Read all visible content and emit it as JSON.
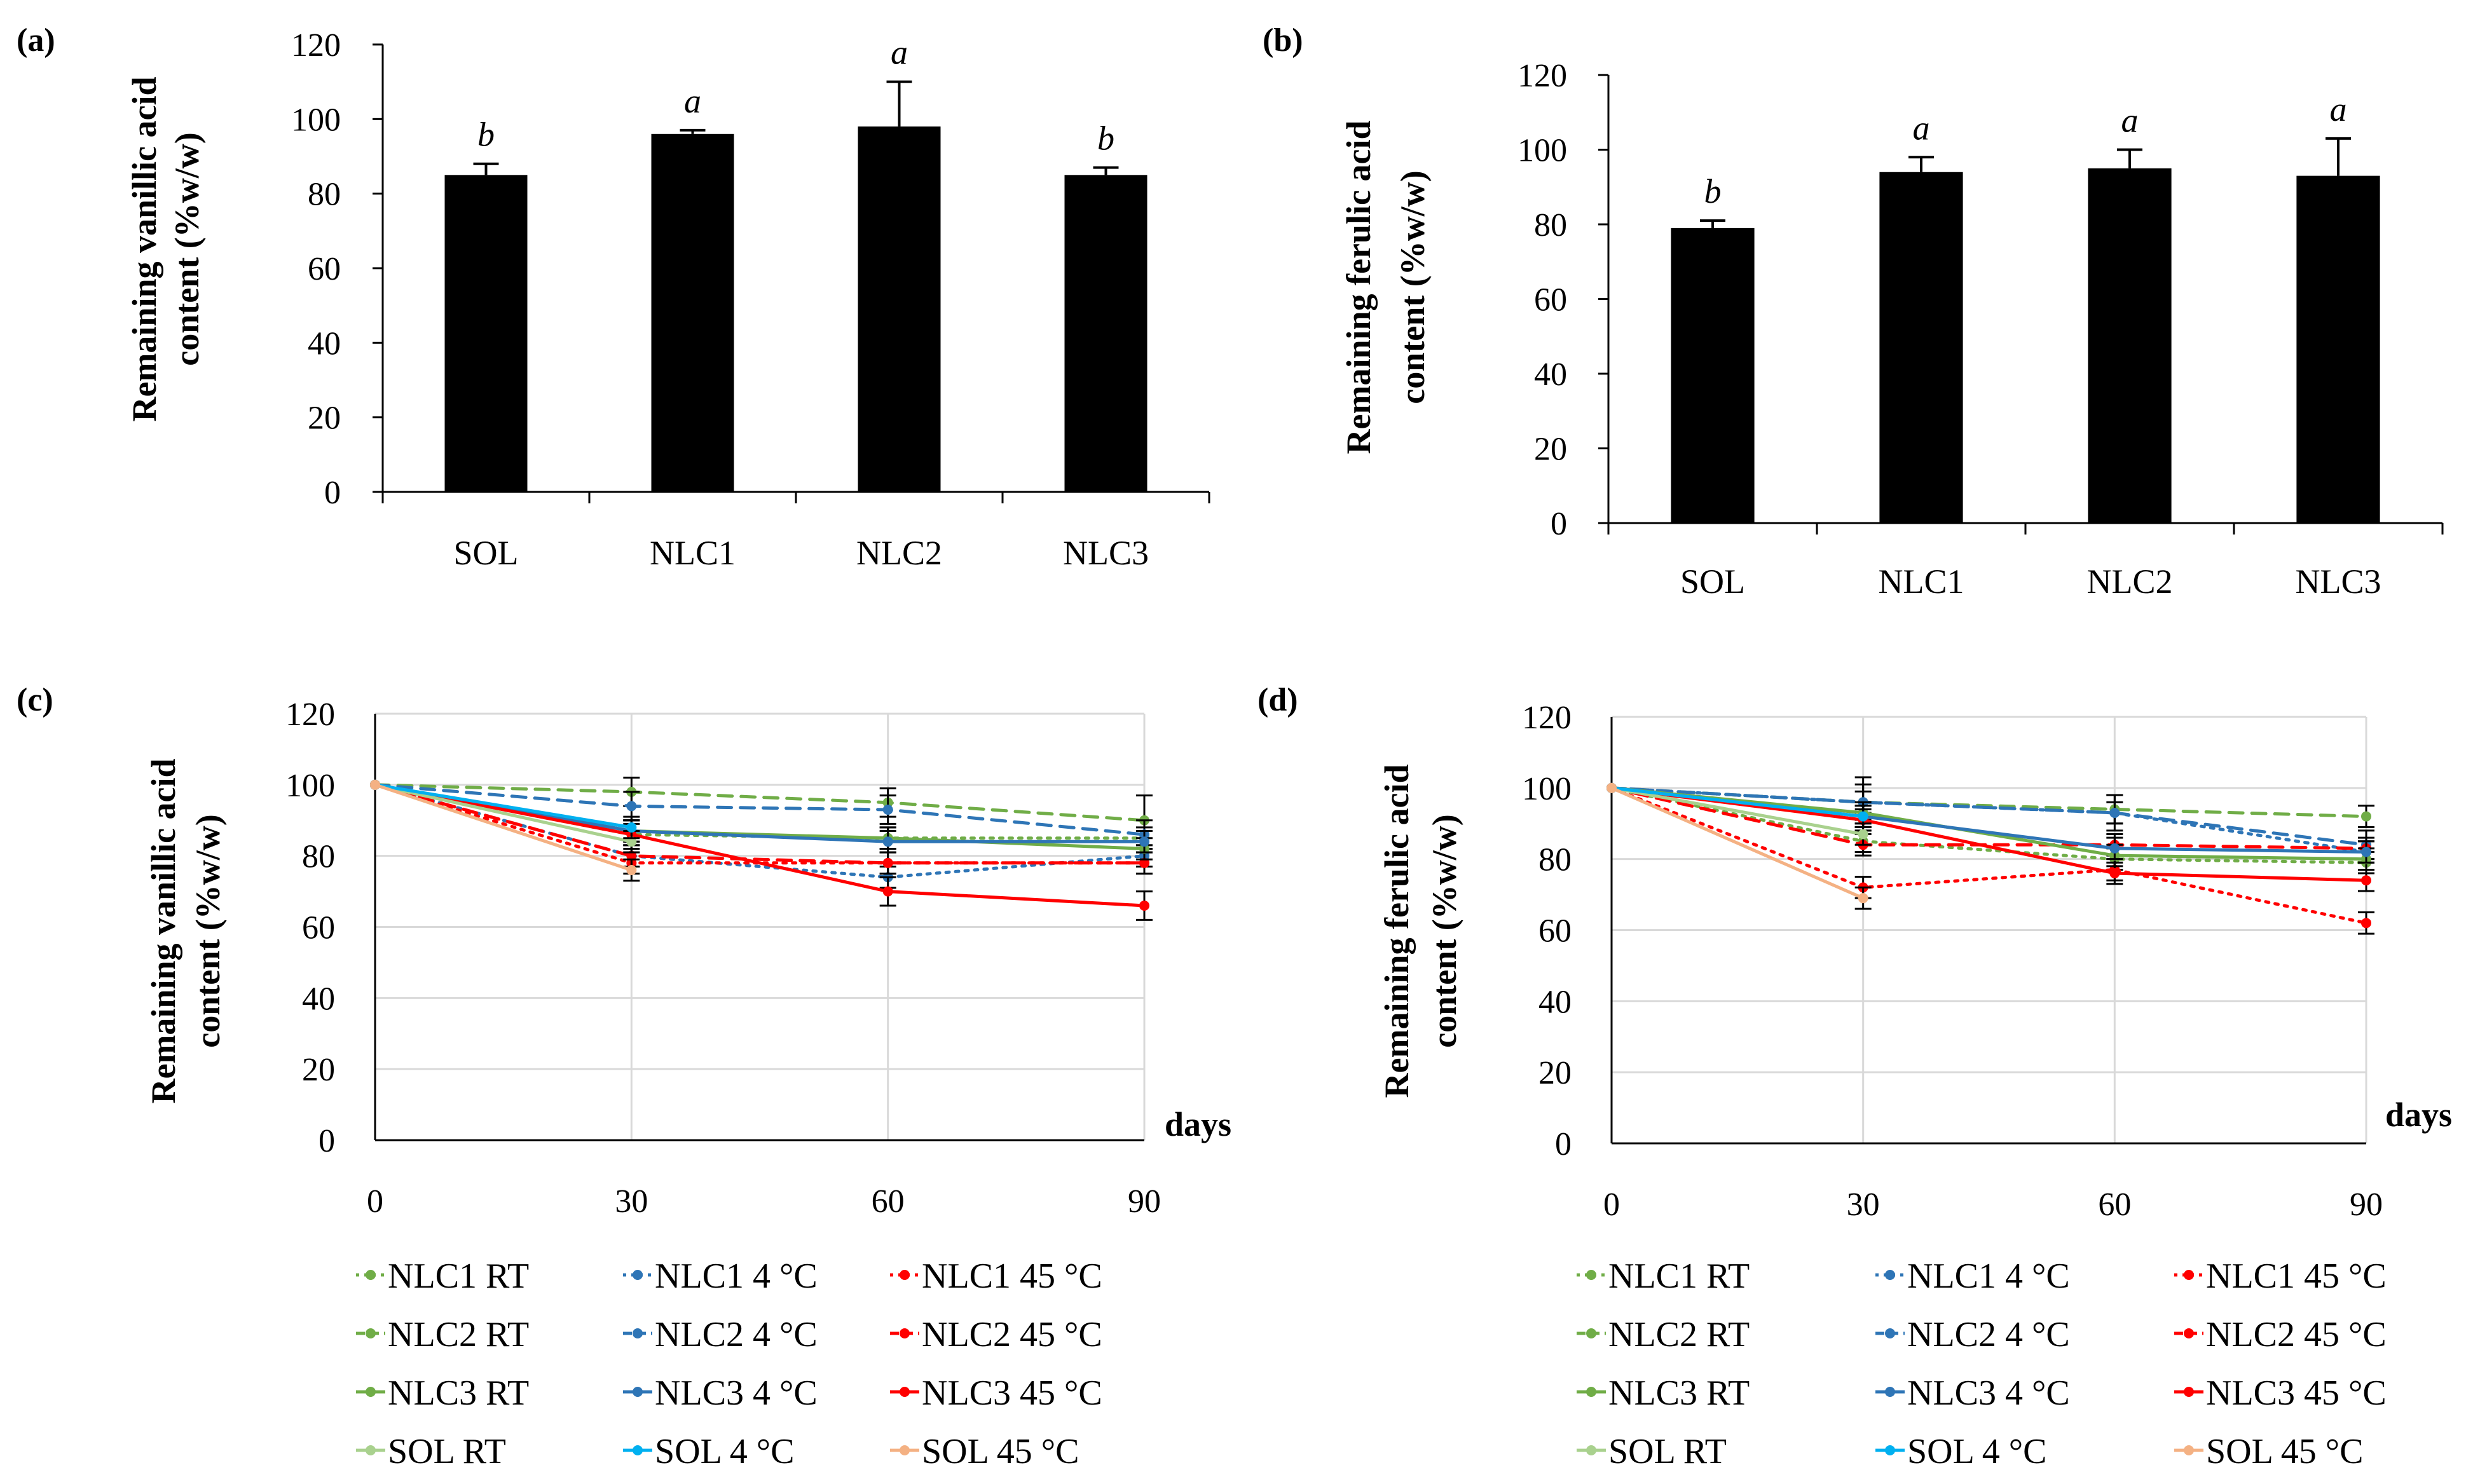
{
  "figure": {
    "xlabel_days": "days"
  },
  "colors": {
    "bar": "#000000",
    "grid": "#d9d9d9",
    "rt": "#70ad47",
    "sol_rt": "#a9d18e",
    "cold": "#2e75b6",
    "sol_cold": "#00b0f0",
    "hot": "#ff0000",
    "sol_hot": "#f4b183"
  },
  "chart_data": [
    {
      "id": "a",
      "panel_label": "(a)",
      "type": "bar",
      "ylabel": [
        "Remaining vanillic acid",
        "content (%w/w)"
      ],
      "categories": [
        "SOL",
        "NLC1",
        "NLC2",
        "NLC3"
      ],
      "values": [
        85,
        96,
        98,
        85
      ],
      "errors": [
        3,
        1,
        12,
        2
      ],
      "significance": [
        "b",
        "a",
        "a",
        "b"
      ],
      "ylim": [
        0,
        120
      ],
      "yticks": [
        0,
        20,
        40,
        60,
        80,
        100,
        120
      ]
    },
    {
      "id": "b",
      "panel_label": "(b)",
      "type": "bar",
      "ylabel": [
        "Remaining ferulic acid",
        "content (%w/w)"
      ],
      "categories": [
        "SOL",
        "NLC1",
        "NLC2",
        "NLC3"
      ],
      "values": [
        79,
        94,
        95,
        93
      ],
      "errors": [
        2,
        4,
        5,
        10
      ],
      "significance": [
        "b",
        "a",
        "a",
        "a"
      ],
      "ylim": [
        0,
        120
      ],
      "yticks": [
        0,
        20,
        40,
        60,
        80,
        100,
        120
      ]
    },
    {
      "id": "c",
      "panel_label": "(c)",
      "type": "line",
      "ylabel": [
        "Remaining vanillic acid",
        "content (%w/w)"
      ],
      "xlabel": "days",
      "x": [
        0,
        30,
        60,
        90
      ],
      "ylim": [
        0,
        120
      ],
      "yticks": [
        0,
        20,
        40,
        60,
        80,
        100,
        120
      ],
      "xticks": [
        0,
        30,
        60,
        90
      ],
      "series": [
        {
          "name": "NLC1 RT",
          "x": [
            0,
            30,
            60,
            90
          ],
          "values": [
            100,
            86,
            85,
            85
          ],
          "color": "#70ad47",
          "dash": "dot",
          "errors": [
            0,
            3,
            3,
            3
          ]
        },
        {
          "name": "NLC1 4 °C",
          "x": [
            0,
            30,
            60,
            90
          ],
          "values": [
            100,
            80,
            74,
            80
          ],
          "color": "#2e75b6",
          "dash": "dot",
          "errors": [
            0,
            3,
            3,
            3
          ]
        },
        {
          "name": "NLC1 45 °C",
          "x": [
            0,
            30,
            60,
            90
          ],
          "values": [
            100,
            78,
            78,
            78
          ],
          "color": "#ff0000",
          "dash": "dot",
          "errors": [
            0,
            3,
            3,
            3
          ]
        },
        {
          "name": "NLC2 RT",
          "x": [
            0,
            30,
            60,
            90
          ],
          "values": [
            100,
            98,
            95,
            90
          ],
          "color": "#70ad47",
          "dash": "dash",
          "errors": [
            0,
            4,
            4,
            7
          ]
        },
        {
          "name": "NLC2 4 °C",
          "x": [
            0,
            30,
            60,
            90
          ],
          "values": [
            100,
            94,
            93,
            86
          ],
          "color": "#2e75b6",
          "dash": "dash",
          "errors": [
            0,
            4,
            4,
            4
          ]
        },
        {
          "name": "NLC2 45 °C",
          "x": [
            0,
            30,
            60,
            90
          ],
          "values": [
            100,
            80,
            78,
            78
          ],
          "color": "#ff0000",
          "dash": "dash",
          "errors": [
            0,
            3,
            3,
            3
          ]
        },
        {
          "name": "NLC3 RT",
          "x": [
            0,
            30,
            60,
            90
          ],
          "values": [
            100,
            87,
            85,
            82
          ],
          "color": "#70ad47",
          "dash": "solid",
          "errors": [
            0,
            3,
            3,
            3
          ]
        },
        {
          "name": "NLC3 4 °C",
          "x": [
            0,
            30,
            60,
            90
          ],
          "values": [
            100,
            87,
            84,
            84
          ],
          "color": "#2e75b6",
          "dash": "solid",
          "errors": [
            0,
            3,
            3,
            3
          ]
        },
        {
          "name": "NLC3 45 °C",
          "x": [
            0,
            30,
            60,
            90
          ],
          "values": [
            100,
            86,
            70,
            66
          ],
          "color": "#ff0000",
          "dash": "solid",
          "errors": [
            0,
            4,
            4,
            4
          ]
        },
        {
          "name": "SOL RT",
          "x": [
            0,
            30
          ],
          "values": [
            100,
            84
          ],
          "color": "#a9d18e",
          "dash": "solid",
          "errors": [
            0,
            3
          ]
        },
        {
          "name": "SOL 4 °C",
          "x": [
            0,
            30
          ],
          "values": [
            100,
            88
          ],
          "color": "#00b0f0",
          "dash": "solid",
          "errors": [
            0,
            3
          ]
        },
        {
          "name": "SOL 45 °C",
          "x": [
            0,
            30
          ],
          "values": [
            100,
            76
          ],
          "color": "#f4b183",
          "dash": "solid",
          "errors": [
            0,
            3
          ]
        }
      ]
    },
    {
      "id": "d",
      "panel_label": "(d)",
      "type": "line",
      "ylabel": [
        "Remaining ferulic acid",
        "content (%w/w)"
      ],
      "xlabel": "days",
      "x": [
        0,
        30,
        60,
        90
      ],
      "ylim": [
        0,
        120
      ],
      "yticks": [
        0,
        20,
        40,
        60,
        80,
        100,
        120
      ],
      "xticks": [
        0,
        30,
        60,
        90
      ],
      "series": [
        {
          "name": "NLC1 RT",
          "x": [
            0,
            30,
            60,
            90
          ],
          "values": [
            100,
            85,
            80,
            79
          ],
          "color": "#70ad47",
          "dash": "dot",
          "errors": [
            0,
            3,
            3,
            3
          ]
        },
        {
          "name": "NLC1 4 °C",
          "x": [
            0,
            30,
            60,
            90
          ],
          "values": [
            100,
            96,
            93,
            82
          ],
          "color": "#2e75b6",
          "dash": "dot",
          "errors": [
            0,
            3,
            3,
            3
          ]
        },
        {
          "name": "NLC1 45 °C",
          "x": [
            0,
            30,
            60,
            90
          ],
          "values": [
            100,
            72,
            77,
            62
          ],
          "color": "#ff0000",
          "dash": "dot",
          "errors": [
            0,
            3,
            3,
            3
          ]
        },
        {
          "name": "NLC2 RT",
          "x": [
            0,
            30,
            60,
            90
          ],
          "values": [
            100,
            96,
            94,
            92
          ],
          "color": "#70ad47",
          "dash": "dash",
          "errors": [
            0,
            5,
            4,
            3
          ]
        },
        {
          "name": "NLC2 4 °C",
          "x": [
            0,
            30,
            60,
            90
          ],
          "values": [
            100,
            96,
            93,
            84
          ],
          "color": "#2e75b6",
          "dash": "dash",
          "errors": [
            0,
            7,
            5,
            4
          ]
        },
        {
          "name": "NLC2 45 °C",
          "x": [
            0,
            30,
            60,
            90
          ],
          "values": [
            100,
            84,
            84,
            83
          ],
          "color": "#ff0000",
          "dash": "dash",
          "errors": [
            0,
            3,
            3,
            3
          ]
        },
        {
          "name": "NLC3 RT",
          "x": [
            0,
            30,
            60,
            90
          ],
          "values": [
            100,
            93,
            81,
            80
          ],
          "color": "#70ad47",
          "dash": "solid",
          "errors": [
            0,
            3,
            3,
            3
          ]
        },
        {
          "name": "NLC3 4 °C",
          "x": [
            0,
            30,
            60,
            90
          ],
          "values": [
            100,
            92,
            83,
            82
          ],
          "color": "#2e75b6",
          "dash": "solid",
          "errors": [
            0,
            3,
            3,
            3
          ]
        },
        {
          "name": "NLC3 45 °C",
          "x": [
            0,
            30,
            60,
            90
          ],
          "values": [
            100,
            91,
            76,
            74
          ],
          "color": "#ff0000",
          "dash": "solid",
          "errors": [
            0,
            3,
            3,
            3
          ]
        },
        {
          "name": "SOL RT",
          "x": [
            0,
            30
          ],
          "values": [
            100,
            87
          ],
          "color": "#a9d18e",
          "dash": "solid",
          "errors": [
            0,
            3
          ]
        },
        {
          "name": "SOL 4 °C",
          "x": [
            0,
            30
          ],
          "values": [
            100,
            92
          ],
          "color": "#00b0f0",
          "dash": "solid",
          "errors": [
            0,
            3
          ]
        },
        {
          "name": "SOL 45 °C",
          "x": [
            0,
            30
          ],
          "values": [
            100,
            69
          ],
          "color": "#f4b183",
          "dash": "solid",
          "errors": [
            0,
            3
          ]
        }
      ]
    }
  ]
}
